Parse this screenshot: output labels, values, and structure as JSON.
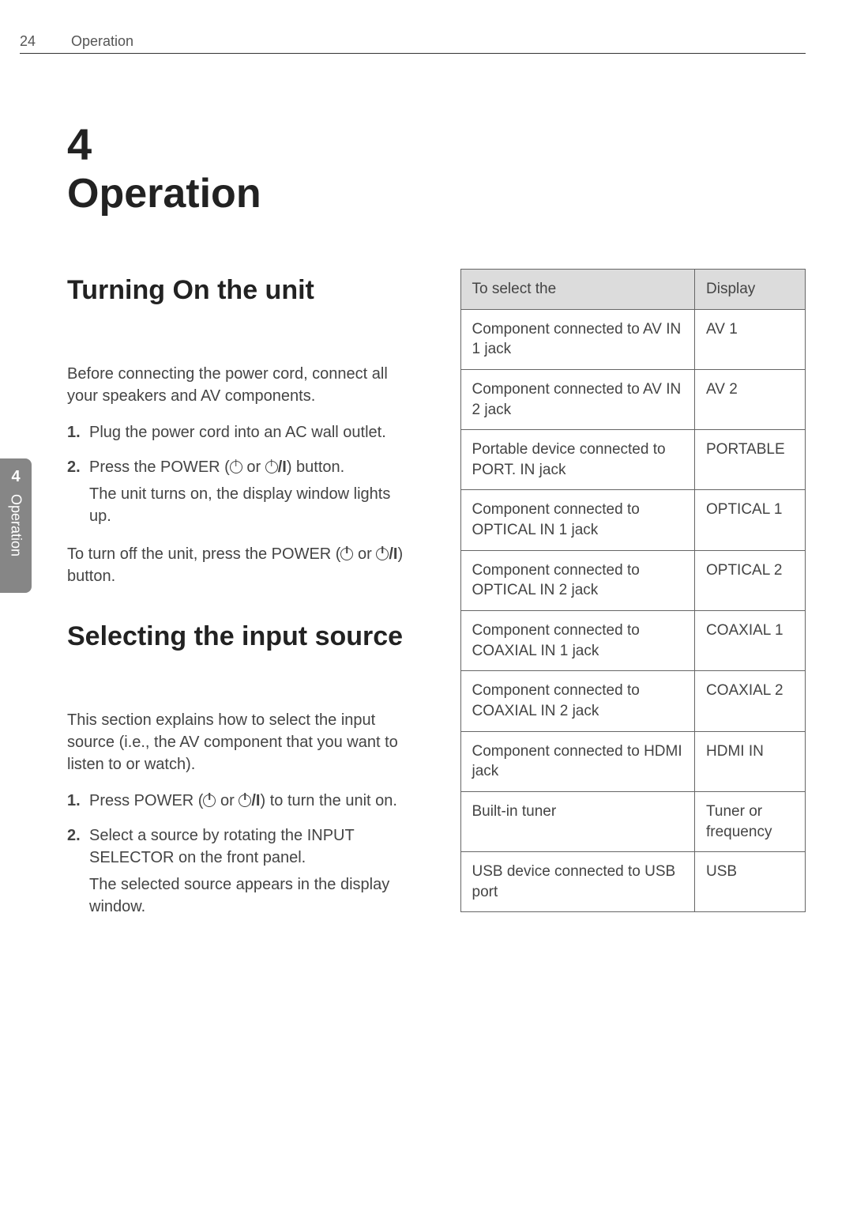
{
  "header": {
    "page_number": "24",
    "section": "Operation"
  },
  "side_tab": {
    "number": "4",
    "label": "Operation"
  },
  "chapter": {
    "number": "4",
    "title": "Operation"
  },
  "section1": {
    "title": "Turning On the unit",
    "intro": "Before connecting the power cord, connect all your speakers and AV components.",
    "steps": [
      {
        "num": "1.",
        "text": "Plug the power cord into an AC wall outlet."
      },
      {
        "num": "2.",
        "text_pre": "Press the POWER (",
        "text_mid": " or ",
        "text_post": ") button.",
        "sub": "The unit turns on, the display window lights up."
      }
    ],
    "closing_pre": "To turn off the unit, press the POWER (",
    "closing_mid": " or ",
    "closing_post": ") button."
  },
  "section2": {
    "title": "Selecting the input source",
    "intro": "This section explains how to select the input source (i.e., the AV component that you want to listen to or watch).",
    "steps": [
      {
        "num": "1.",
        "text_pre": "Press POWER (",
        "text_mid": " or ",
        "text_post": ") to turn the unit on."
      },
      {
        "num": "2.",
        "text": "Select a source by rotating the INPUT SELECTOR on the front panel.",
        "sub": "The selected source appears in the display window."
      }
    ]
  },
  "table": {
    "headers": [
      "To select the",
      "Display"
    ],
    "rows": [
      [
        "Component connected to AV IN 1 jack",
        "AV 1"
      ],
      [
        "Component connected to AV IN 2 jack",
        "AV 2"
      ],
      [
        "Portable device connected to PORT. IN jack",
        "PORTABLE"
      ],
      [
        "Component connected to OPTICAL IN 1 jack",
        "OPTICAL 1"
      ],
      [
        "Component connected to OPTICAL IN 2 jack",
        "OPTICAL 2"
      ],
      [
        "Component connected to COAXIAL IN 1 jack",
        "COAXIAL 1"
      ],
      [
        "Component connected to COAXIAL IN 2 jack",
        "COAXIAL 2"
      ],
      [
        "Component connected to HDMI jack",
        "HDMI IN"
      ],
      [
        "Built-in tuner",
        "Tuner or frequency"
      ],
      [
        "USB device connected to USB port",
        "USB"
      ]
    ]
  },
  "colors": {
    "text": "#333333",
    "body_text": "#444444",
    "tab_bg": "#868686",
    "table_header_bg": "#dcdcdc",
    "border": "#666666",
    "background": "#ffffff"
  }
}
